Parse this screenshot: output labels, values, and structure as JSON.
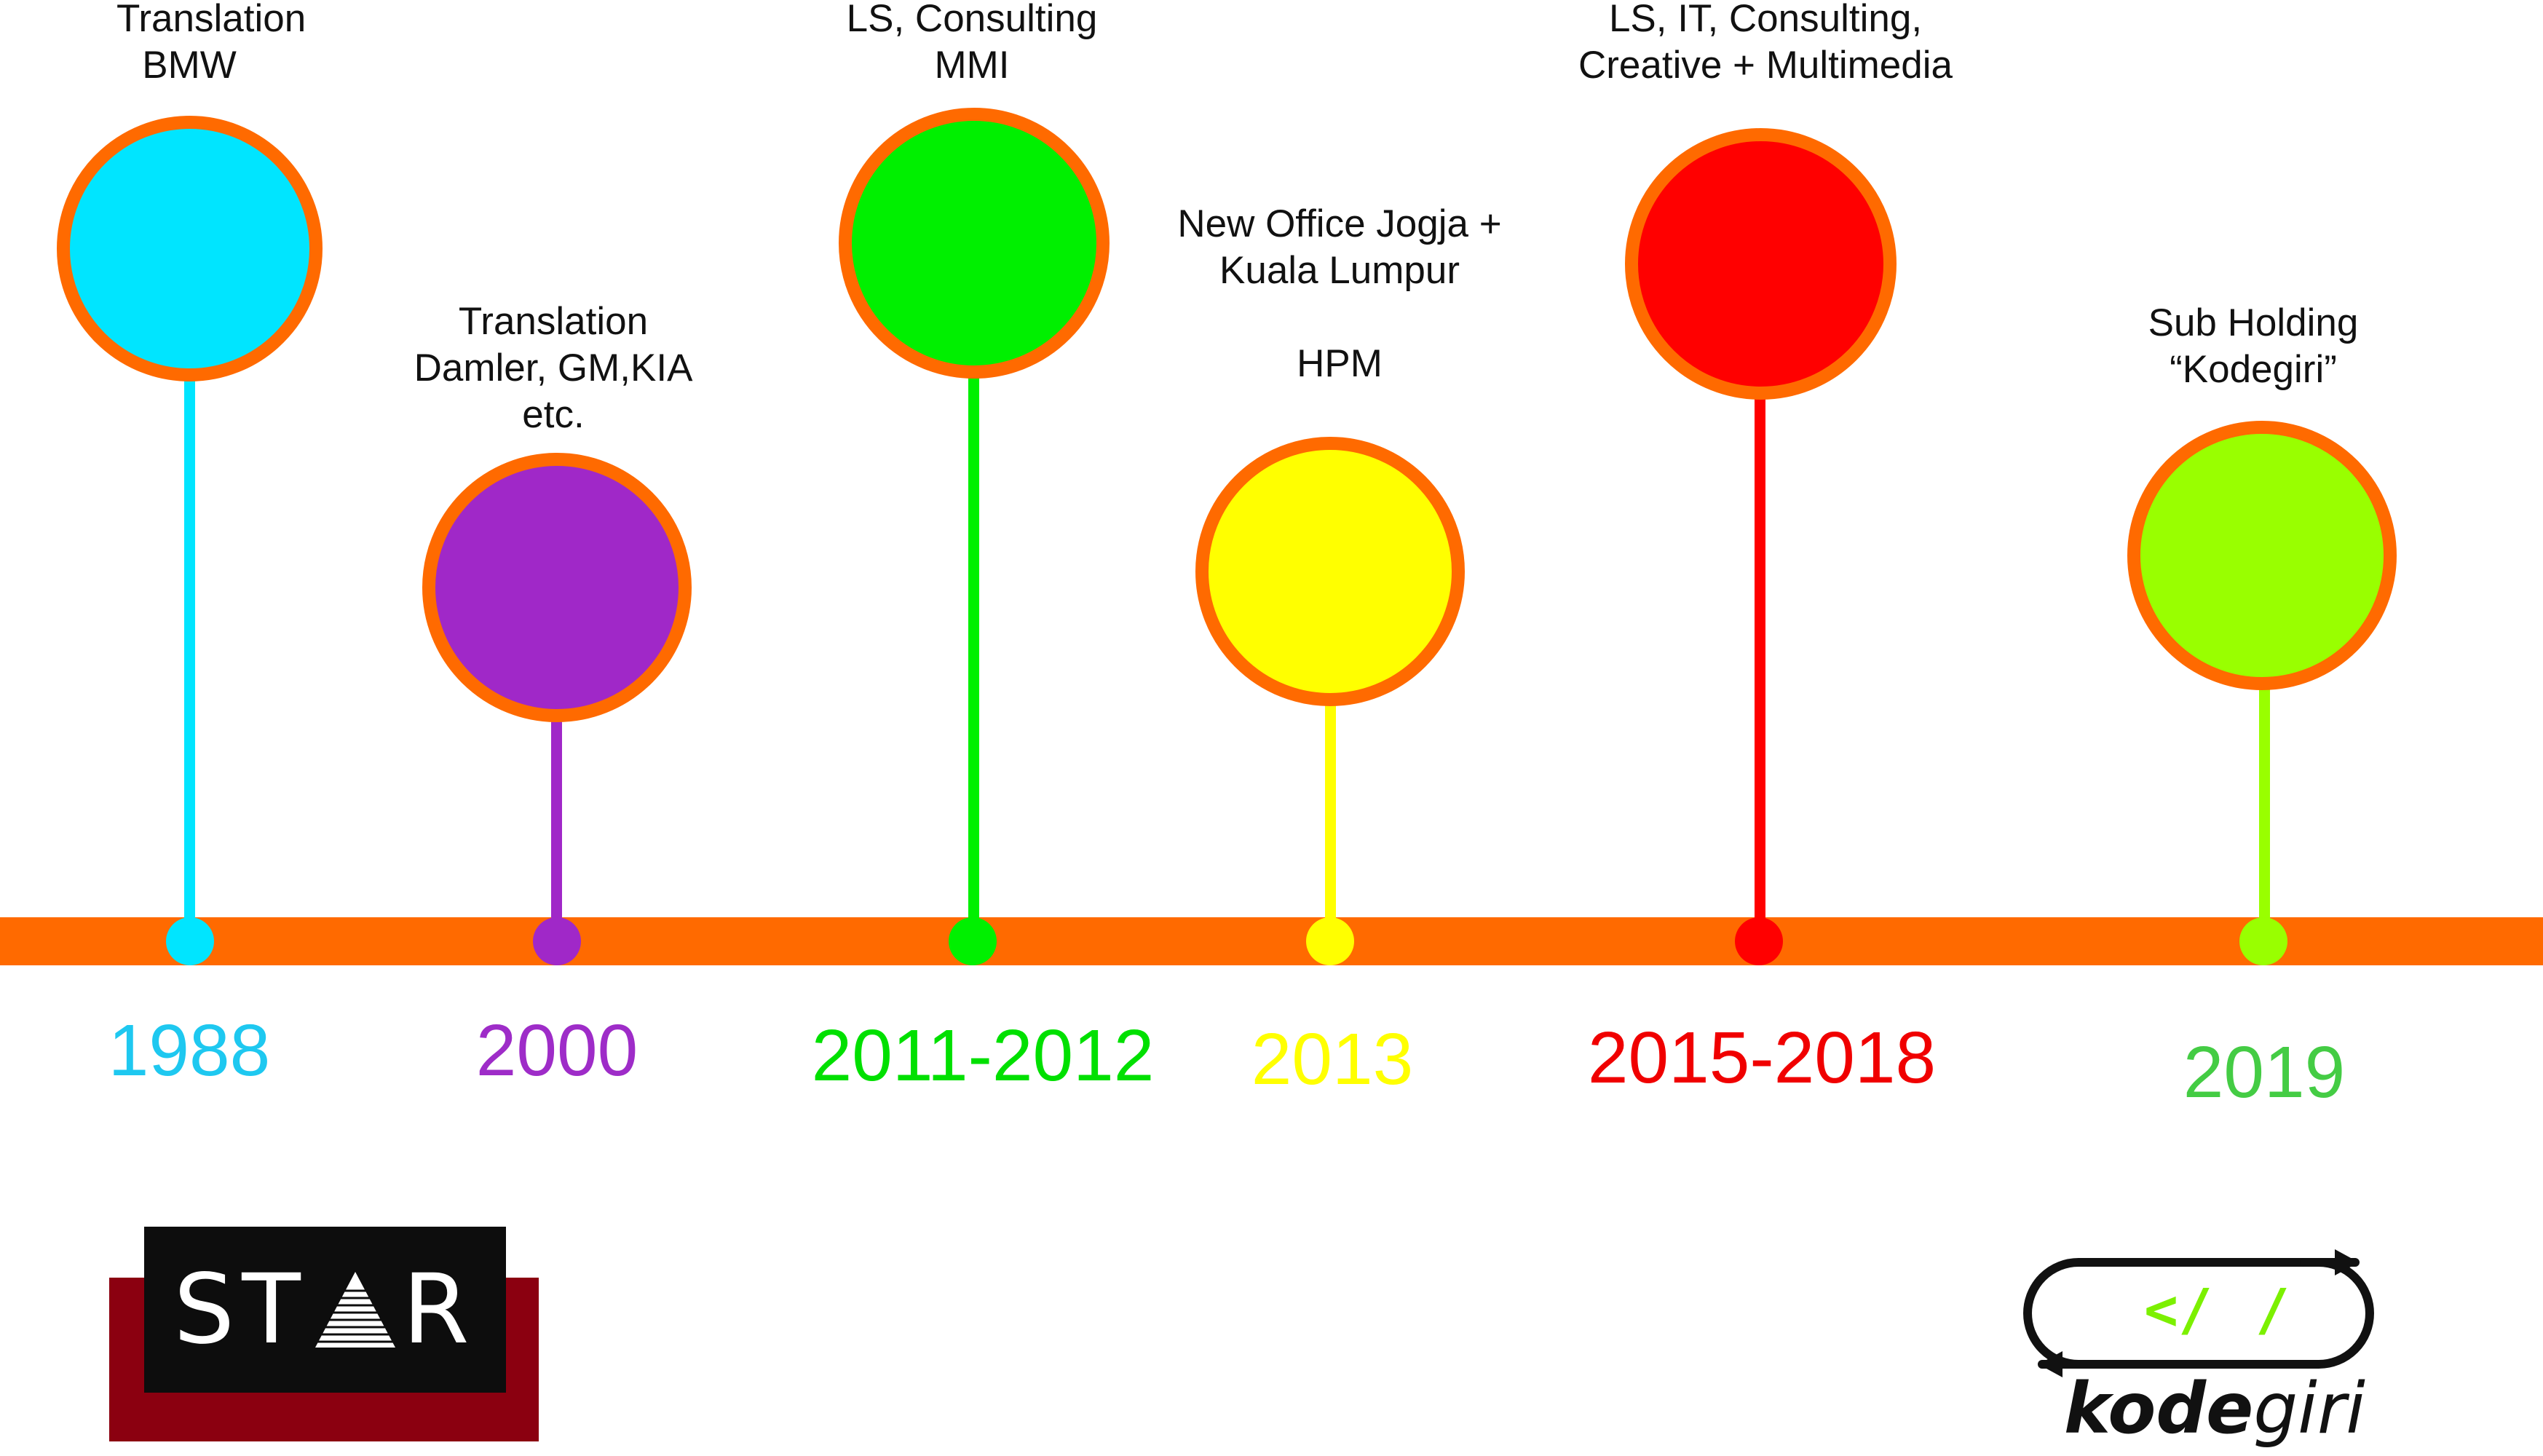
{
  "colors": {
    "timeline": "#ff6a00",
    "ring": "#ff6a00"
  },
  "events": [
    {
      "year": "1988",
      "lines": [
        "Translation",
        "BMW"
      ],
      "fill": "#00e5ff",
      "year_color": "#1ec8f0"
    },
    {
      "year": "2000",
      "lines": [
        "Translation",
        "Damler, GM,KIA",
        "etc."
      ],
      "fill": "#a028c8",
      "year_color": "#9e2cc8"
    },
    {
      "year": "2011-2012",
      "lines": [
        "LS, Consulting",
        "MMI"
      ],
      "fill": "#00f000",
      "year_color": "#00e000"
    },
    {
      "year": "2013",
      "lines": [
        "New Office Jogja +",
        "Kuala Lumpur",
        "",
        "HPM"
      ],
      "fill": "#ffff00",
      "year_color": "#ffff00"
    },
    {
      "year": "2015-2018",
      "lines": [
        "LS, IT, Consulting,",
        "Creative + Multimedia"
      ],
      "fill": "#ff0000",
      "year_color": "#f00000"
    },
    {
      "year": "2019",
      "lines": [
        "Sub Holding",
        "“Kodegiri”"
      ],
      "fill": "#99ff00",
      "year_color": "#44cc44"
    }
  ],
  "logos": {
    "star": {
      "text_left": "ST",
      "text_right": "R",
      "icon": "pyramid-icon"
    },
    "kodegiri": {
      "mark": "</",
      "mark_color": "#7cf000",
      "wordmark_bold": "kode",
      "wordmark_regular": "giri"
    }
  }
}
